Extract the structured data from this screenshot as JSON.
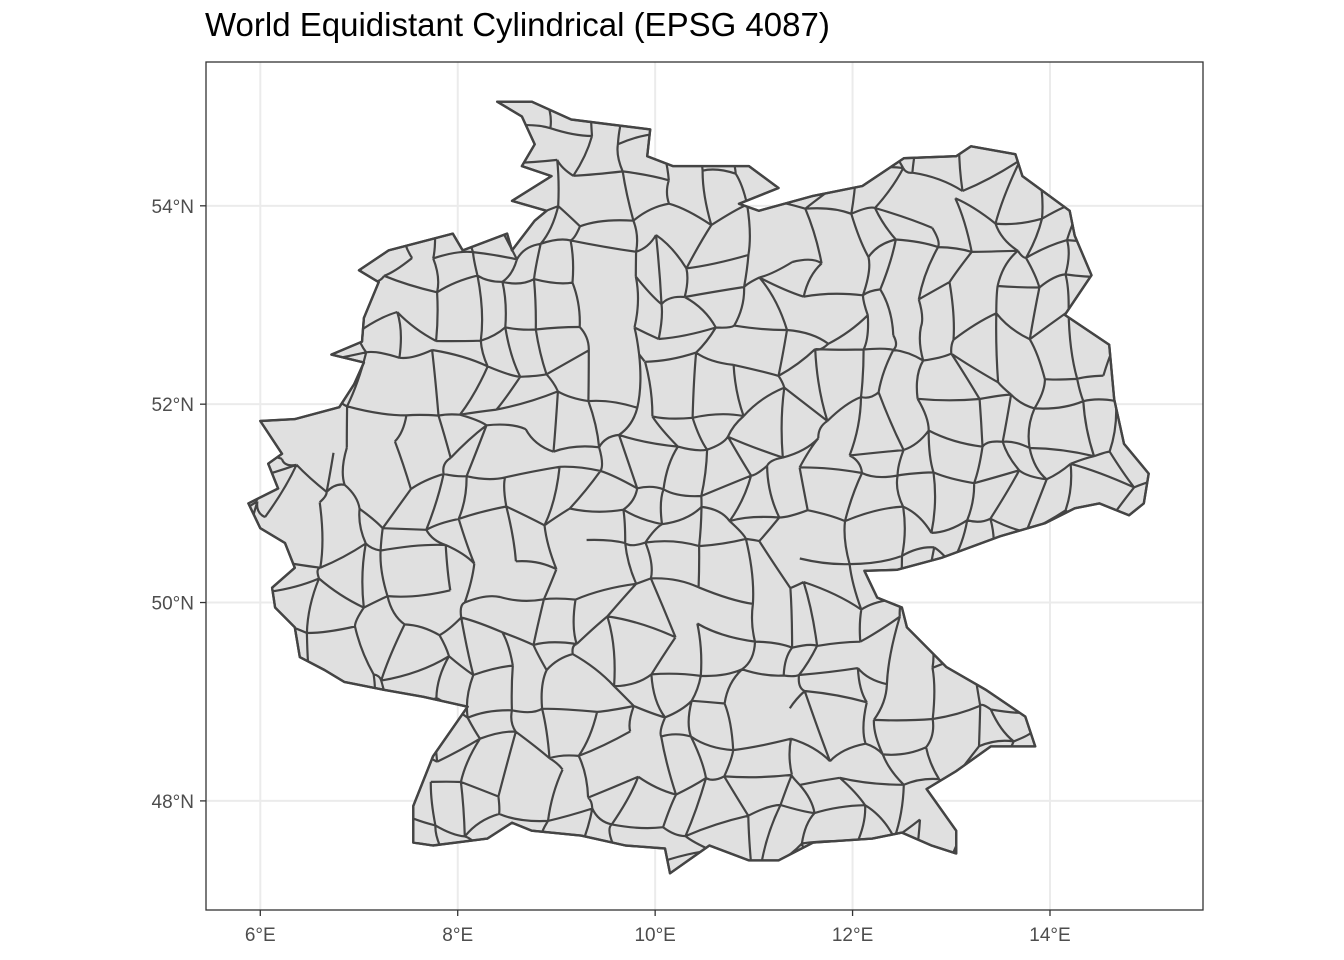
{
  "title": "World Equidistant Cylindrical (EPSG 4087)",
  "colors": {
    "panel_background": "#ffffff",
    "grid": "#ebebeb",
    "border": "#333333",
    "region_fill": "#e0e0e0",
    "region_stroke": "#444444",
    "tick_text": "#4d4d4d"
  },
  "axes": {
    "x": {
      "range": [
        5.45,
        15.55
      ],
      "ticks": [
        6,
        8,
        10,
        12,
        14
      ],
      "tick_labels": [
        "6°E",
        "8°E",
        "10°E",
        "12°E",
        "14°E"
      ]
    },
    "y": {
      "range": [
        46.9,
        55.45
      ],
      "ticks": [
        48,
        50,
        52,
        54
      ],
      "tick_labels": [
        "48°N",
        "50°N",
        "52°N",
        "54°N"
      ]
    },
    "grid": true
  },
  "map": {
    "type": "choropleth-outline",
    "country": "Germany",
    "projection": "World Equidistant Cylindrical (EPSG 4087)",
    "outline_lonlat": [
      [
        6.0,
        51.83
      ],
      [
        6.35,
        51.85
      ],
      [
        6.8,
        51.97
      ],
      [
        6.95,
        52.2
      ],
      [
        7.05,
        52.42
      ],
      [
        6.72,
        52.5
      ],
      [
        7.03,
        52.63
      ],
      [
        7.05,
        52.87
      ],
      [
        7.2,
        53.23
      ],
      [
        7.0,
        53.35
      ],
      [
        7.3,
        53.55
      ],
      [
        7.95,
        53.72
      ],
      [
        8.05,
        53.55
      ],
      [
        8.5,
        53.72
      ],
      [
        8.55,
        53.55
      ],
      [
        8.78,
        53.85
      ],
      [
        8.9,
        53.95
      ],
      [
        8.55,
        54.05
      ],
      [
        8.95,
        54.3
      ],
      [
        8.65,
        54.4
      ],
      [
        8.78,
        54.62
      ],
      [
        8.65,
        54.9
      ],
      [
        8.4,
        55.05
      ],
      [
        8.75,
        55.05
      ],
      [
        9.15,
        54.87
      ],
      [
        9.55,
        54.82
      ],
      [
        9.95,
        54.77
      ],
      [
        9.92,
        54.5
      ],
      [
        10.18,
        54.4
      ],
      [
        10.95,
        54.4
      ],
      [
        11.25,
        54.18
      ],
      [
        10.85,
        54.02
      ],
      [
        11.05,
        53.95
      ],
      [
        11.6,
        54.1
      ],
      [
        12.1,
        54.2
      ],
      [
        12.52,
        54.48
      ],
      [
        13.05,
        54.5
      ],
      [
        13.2,
        54.6
      ],
      [
        13.65,
        54.52
      ],
      [
        13.72,
        54.3
      ],
      [
        14.2,
        53.95
      ],
      [
        14.25,
        53.7
      ],
      [
        14.42,
        53.3
      ],
      [
        14.15,
        52.9
      ],
      [
        14.6,
        52.6
      ],
      [
        14.65,
        52.05
      ],
      [
        14.75,
        51.6
      ],
      [
        15.0,
        51.3
      ],
      [
        14.95,
        51.0
      ],
      [
        14.8,
        50.88
      ],
      [
        14.5,
        51.0
      ],
      [
        14.25,
        50.95
      ],
      [
        13.95,
        50.8
      ],
      [
        13.5,
        50.67
      ],
      [
        12.9,
        50.45
      ],
      [
        12.45,
        50.33
      ],
      [
        12.12,
        50.32
      ],
      [
        12.25,
        50.05
      ],
      [
        12.5,
        49.95
      ],
      [
        12.55,
        49.75
      ],
      [
        12.95,
        49.35
      ],
      [
        13.35,
        49.12
      ],
      [
        13.75,
        48.85
      ],
      [
        13.85,
        48.55
      ],
      [
        13.4,
        48.55
      ],
      [
        13.05,
        48.3
      ],
      [
        12.75,
        48.12
      ],
      [
        13.05,
        47.7
      ],
      [
        13.05,
        47.47
      ],
      [
        12.8,
        47.55
      ],
      [
        12.5,
        47.68
      ],
      [
        12.2,
        47.62
      ],
      [
        11.9,
        47.6
      ],
      [
        11.6,
        47.58
      ],
      [
        11.25,
        47.4
      ],
      [
        10.95,
        47.4
      ],
      [
        10.55,
        47.55
      ],
      [
        10.15,
        47.27
      ],
      [
        10.1,
        47.52
      ],
      [
        9.7,
        47.55
      ],
      [
        9.25,
        47.65
      ],
      [
        8.75,
        47.7
      ],
      [
        8.55,
        47.78
      ],
      [
        8.3,
        47.62
      ],
      [
        7.75,
        47.55
      ],
      [
        7.55,
        47.58
      ],
      [
        7.55,
        47.95
      ],
      [
        7.75,
        48.45
      ],
      [
        8.1,
        48.95
      ],
      [
        7.65,
        49.05
      ],
      [
        7.25,
        49.12
      ],
      [
        6.85,
        49.2
      ],
      [
        6.65,
        49.32
      ],
      [
        6.4,
        49.45
      ],
      [
        6.35,
        49.75
      ],
      [
        6.15,
        49.95
      ],
      [
        6.12,
        50.15
      ],
      [
        6.35,
        50.35
      ],
      [
        6.25,
        50.6
      ],
      [
        6.0,
        50.75
      ],
      [
        5.88,
        51.0
      ],
      [
        6.18,
        51.15
      ],
      [
        6.08,
        51.4
      ],
      [
        6.22,
        51.5
      ],
      [
        6.0,
        51.83
      ]
    ]
  }
}
